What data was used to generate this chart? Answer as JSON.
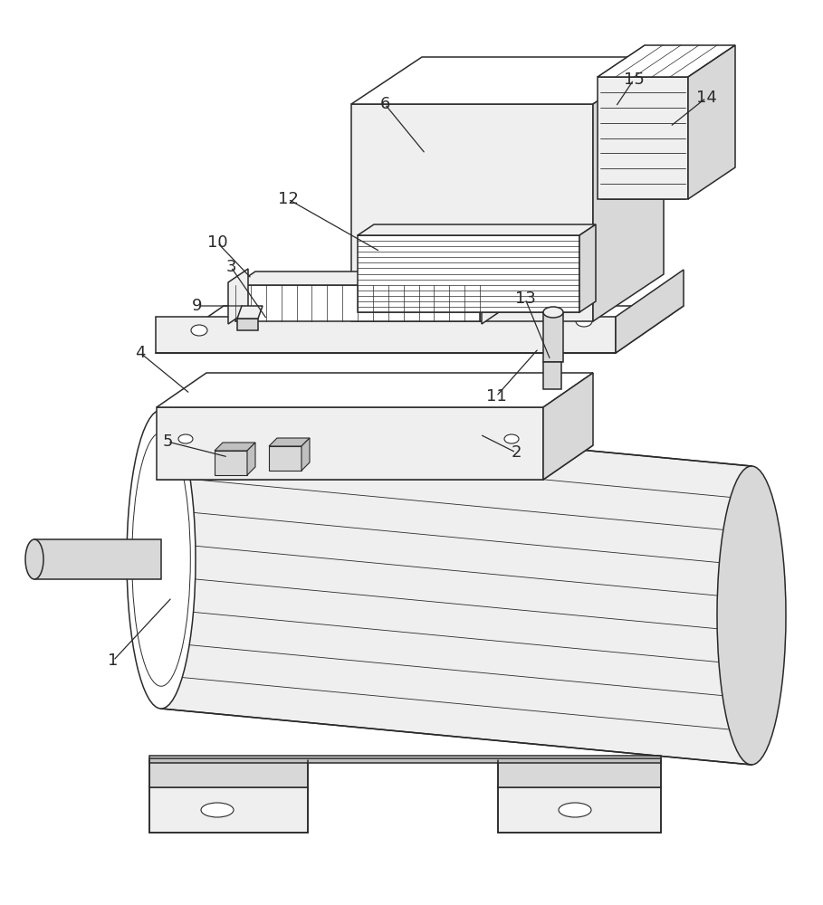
{
  "background_color": "#ffffff",
  "line_color": "#2a2a2a",
  "lw": 1.1,
  "fl": "#efefef",
  "fm": "#d8d8d8",
  "fd": "#c0c0c0",
  "fw": "#ffffff",
  "figsize": [
    9.09,
    10.0
  ],
  "dpi": 100
}
